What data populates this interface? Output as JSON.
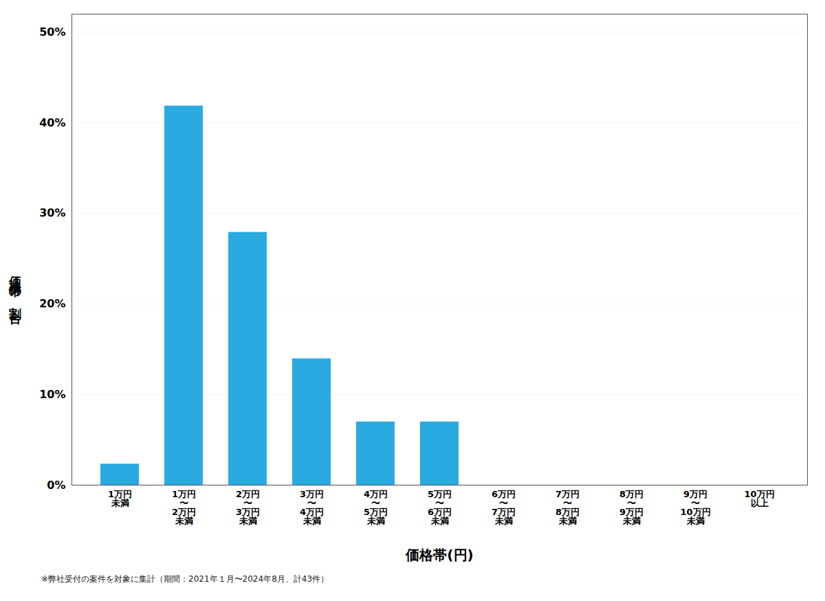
{
  "chart_data": {
    "type": "bar",
    "categories": [
      "1万円\n未満",
      "1万円\n〜\n2万円\n未満",
      "2万円\n〜\n3万円\n未満",
      "3万円\n〜\n4万円\n未満",
      "4万円\n〜\n5万円\n未満",
      "5万円\n〜\n6万円\n未満",
      "6万円\n〜\n7万円\n未満",
      "7万円\n〜\n8万円\n未満",
      "8万円\n〜\n9万円\n未満",
      "9万円\n〜\n10万円\n未満",
      "10万円\n以上"
    ],
    "values": [
      0.0233,
      0.4186,
      0.2791,
      0.1395,
      0.0698,
      0.0698,
      0.0,
      0.0,
      0.0,
      0.0,
      0.0
    ],
    "color": "#29ABE2",
    "xlabel": "価格帯(円)",
    "ylabel": "価格帯の割合",
    "caption": "※弊社受付の案件を対象に集計（期間：2021年１月〜2024年8月、計43件）",
    "ylim": [
      0,
      0.52
    ],
    "yticks": [
      {
        "value": 0.0,
        "label": "0%"
      },
      {
        "value": 0.1,
        "label": "10%"
      },
      {
        "value": 0.2,
        "label": "20%"
      },
      {
        "value": 0.3,
        "label": "30%"
      },
      {
        "value": 0.4,
        "label": "40%"
      },
      {
        "value": 0.5,
        "label": "50%"
      }
    ],
    "grid": true
  }
}
